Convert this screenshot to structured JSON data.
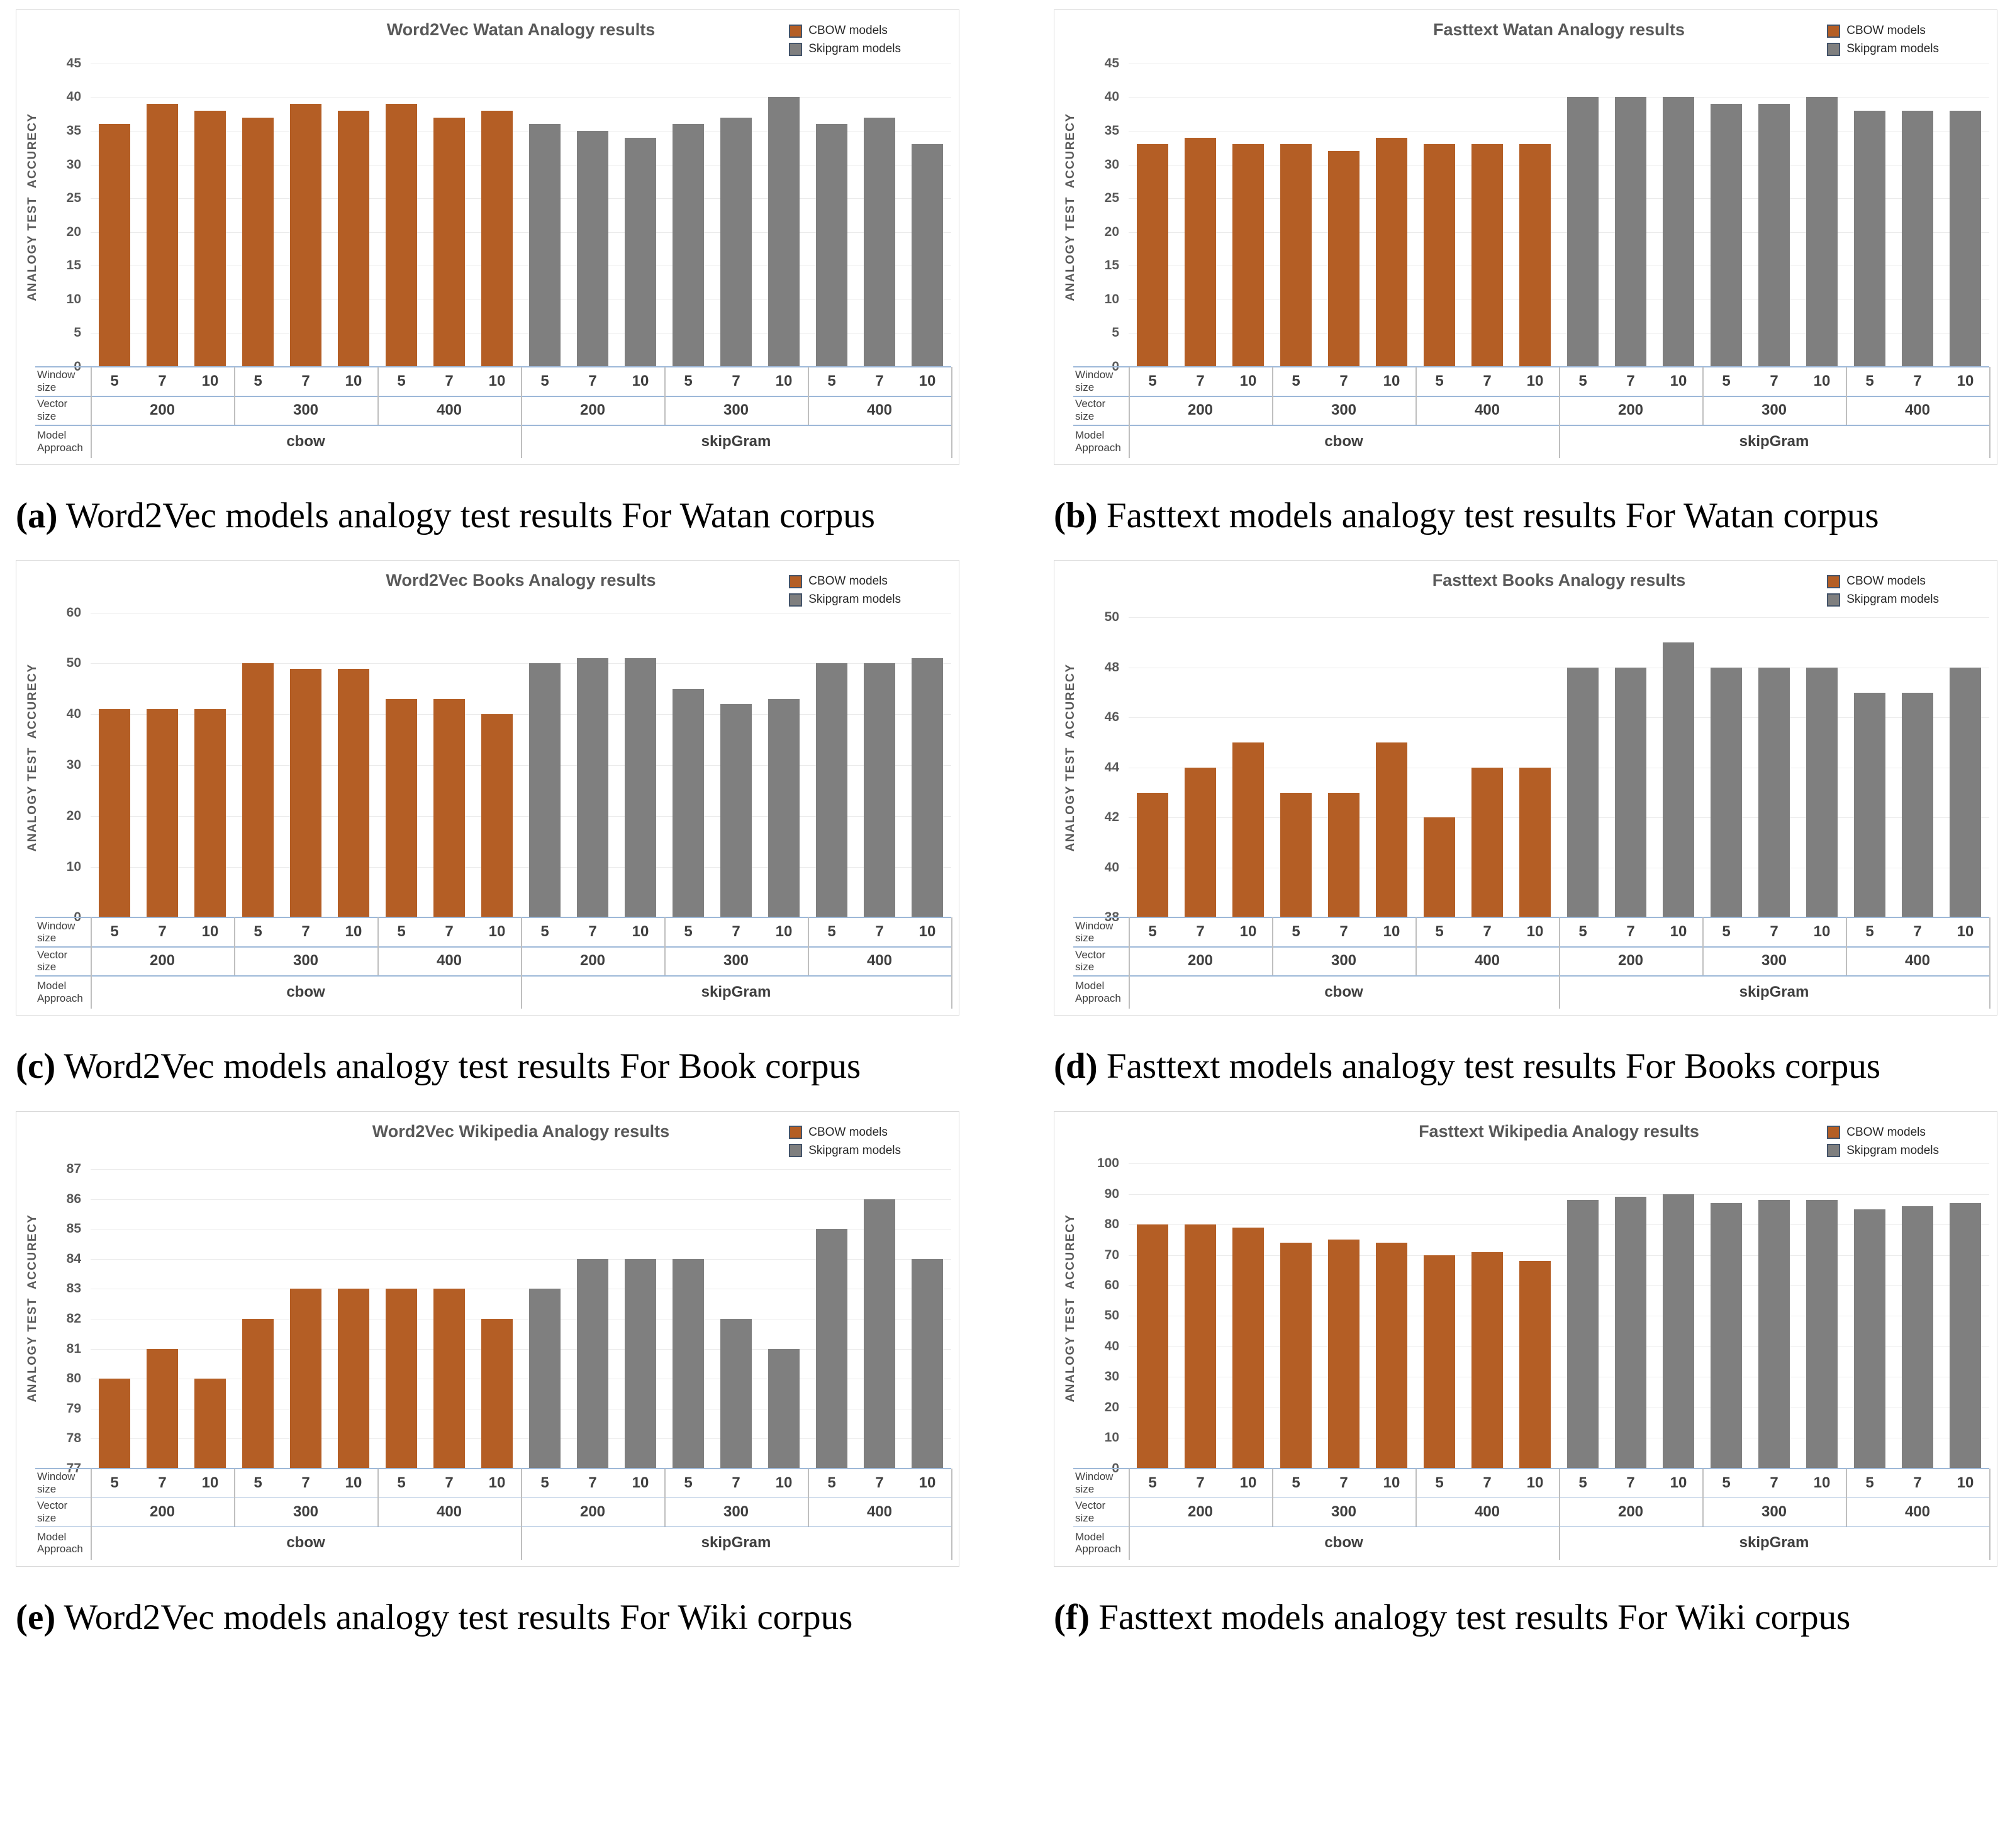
{
  "colors": {
    "cbow_bar": "#b45e25",
    "skipgram_bar": "#7f7f7f",
    "legend_swatch_border": "#44546a",
    "title_text": "#595959",
    "tick_text": "#595959",
    "table_text": "#3f3f3f",
    "gridline": "#ebebeb",
    "axis_line_blue": "#9db8d8",
    "table_divider_gray": "#bfbfbf",
    "panel_border": "#d9d9d9"
  },
  "legend": {
    "items": [
      {
        "label": "CBOW models",
        "swatch": "cbow_bar"
      },
      {
        "label": "Skipgram models",
        "swatch": "skipgram_bar"
      }
    ]
  },
  "axis_table": {
    "row_headers": [
      "Window size",
      "Vector size",
      "Model Approach"
    ],
    "window_sizes": [
      "5",
      "7",
      "10"
    ],
    "vector_sizes": [
      "200",
      "300",
      "400"
    ],
    "approaches": [
      "cbow",
      "skipGram"
    ]
  },
  "chart_data": [
    {
      "type": "bar",
      "title": "Word2Vec Watan Analogy results",
      "ylabel": "ANALOGY TEST  ACCURECY",
      "ylim": [
        0,
        47.5
      ],
      "yticks": [
        0,
        5,
        10,
        15,
        20,
        25,
        30,
        35,
        40,
        45
      ],
      "grid": true,
      "legend_position": "top-right",
      "series": [
        {
          "name": "CBOW models",
          "values": [
            36,
            39,
            38,
            37,
            39,
            38,
            39,
            37,
            38
          ]
        },
        {
          "name": "Skipgram models",
          "values": [
            36,
            35,
            34,
            36,
            37,
            40,
            36,
            37,
            33
          ]
        }
      ]
    },
    {
      "type": "bar",
      "title": "Fasttext Watan Analogy results",
      "ylabel": "ANALOGY TEST  ACCURECY",
      "ylim": [
        0,
        47.5
      ],
      "yticks": [
        0,
        5,
        10,
        15,
        20,
        25,
        30,
        35,
        40,
        45
      ],
      "grid": true,
      "legend_position": "top-right",
      "series": [
        {
          "name": "CBOW models",
          "values": [
            33,
            34,
            33,
            33,
            32,
            34,
            33,
            33,
            33
          ]
        },
        {
          "name": "Skipgram models",
          "values": [
            40,
            40,
            40,
            39,
            39,
            40,
            38,
            38,
            38
          ]
        }
      ]
    },
    {
      "type": "bar",
      "title": "Word2Vec Books Analogy results",
      "ylabel": "ANALOGY TEST  ACCURECY",
      "ylim": [
        0,
        63
      ],
      "yticks": [
        0,
        10,
        20,
        30,
        40,
        50,
        60
      ],
      "grid": true,
      "legend_position": "top-right",
      "series": [
        {
          "name": "CBOW models",
          "values": [
            41,
            41,
            41,
            50,
            49,
            49,
            43,
            43,
            40
          ]
        },
        {
          "name": "Skipgram models",
          "values": [
            50,
            51,
            51,
            45,
            42,
            43,
            50,
            50,
            51
          ]
        }
      ]
    },
    {
      "type": "bar",
      "title": "Fasttext Books Analogy results",
      "ylabel": "ANALOGY TEST  ACCURECY",
      "ylim": [
        38,
        50.8
      ],
      "yticks": [
        38,
        40,
        42,
        44,
        46,
        48,
        50
      ],
      "grid": true,
      "legend_position": "top-right",
      "series": [
        {
          "name": "CBOW models",
          "values": [
            43,
            44,
            45,
            43,
            43,
            45,
            42,
            44,
            44
          ]
        },
        {
          "name": "Skipgram models",
          "values": [
            48,
            48,
            49,
            48,
            48,
            48,
            47,
            47,
            48
          ]
        }
      ]
    },
    {
      "type": "bar",
      "title": "Word2Vec Wikipedia Analogy results",
      "ylabel": "ANALOGY TEST  ACCURECY",
      "ylim": [
        77,
        87.7
      ],
      "yticks": [
        77,
        78,
        79,
        80,
        81,
        82,
        83,
        84,
        85,
        86,
        87
      ],
      "grid": true,
      "legend_position": "top-right",
      "series": [
        {
          "name": "CBOW models",
          "values": [
            80,
            81,
            80,
            82,
            83,
            83,
            83,
            83,
            82
          ]
        },
        {
          "name": "Skipgram models",
          "values": [
            83,
            84,
            84,
            84,
            82,
            81,
            85,
            86,
            84
          ]
        }
      ]
    },
    {
      "type": "bar",
      "title": "Fasttext Wikipedia Analogy results",
      "ylabel": "ANALOGY TEST  ACCURECY",
      "ylim": [
        0,
        105
      ],
      "yticks": [
        0,
        10,
        20,
        30,
        40,
        50,
        60,
        70,
        80,
        90,
        100
      ],
      "grid": true,
      "legend_position": "top-right",
      "series": [
        {
          "name": "CBOW models",
          "values": [
            80,
            80,
            79,
            74,
            75,
            74,
            70,
            71,
            68
          ]
        },
        {
          "name": "Skipgram models",
          "values": [
            88,
            89,
            90,
            87,
            88,
            88,
            85,
            86,
            87
          ]
        }
      ]
    }
  ],
  "captions": [
    {
      "label": "(a)",
      "text": "Word2Vec models analogy test results For Watan corpus"
    },
    {
      "label": "(b)",
      "text": "Fasttext models analogy test results For Watan corpus"
    },
    {
      "label": "(c)",
      "text": "Word2Vec models analogy test results For Book corpus"
    },
    {
      "label": "(d)",
      "text": "Fasttext models analogy test results For Books corpus"
    },
    {
      "label": "(e)",
      "text": "Word2Vec models analogy test results For Wiki corpus"
    },
    {
      "label": "(f)",
      "text": "Fasttext models analogy test results For Wiki corpus"
    }
  ]
}
